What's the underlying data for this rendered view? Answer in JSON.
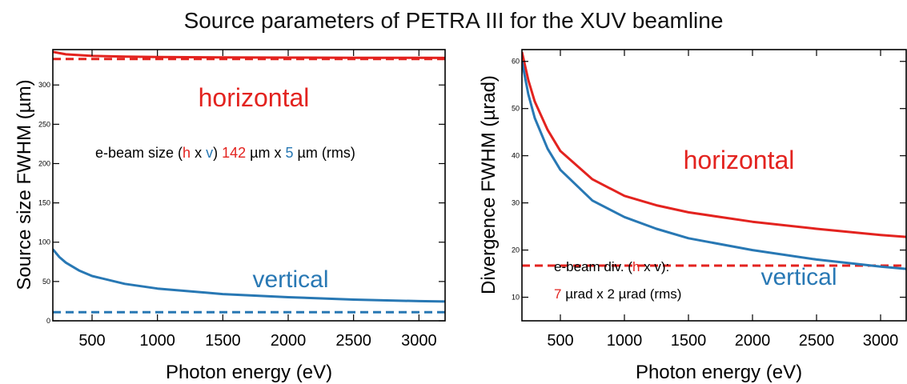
{
  "title": "Source parameters of PETRA III for the XUV beamline",
  "colors": {
    "horizontal": "#e3231f",
    "vertical": "#2878b4",
    "axis": "#000000"
  },
  "chart_data": [
    {
      "type": "line",
      "xlabel": "Photon energy (eV)",
      "ylabel": "Source size FWHM (µm)",
      "xlim": [
        200,
        3200
      ],
      "ylim": [
        0,
        345
      ],
      "xticks": [
        500,
        1000,
        1500,
        2000,
        2500,
        3000
      ],
      "yticks": [
        0,
        50,
        100,
        150,
        200,
        250,
        300
      ],
      "series": [
        {
          "name": "horizontal",
          "style": "solid",
          "color": "#e3231f",
          "x": [
            200,
            300,
            500,
            750,
            1000,
            1500,
            2000,
            2500,
            3000,
            3200
          ],
          "y": [
            342,
            339,
            337,
            336,
            335.5,
            335,
            334.8,
            334.6,
            334.5,
            334.4
          ]
        },
        {
          "name": "horizontal e-beam",
          "style": "dashed",
          "color": "#e3231f",
          "x": [
            200,
            3200
          ],
          "y": [
            333,
            333
          ]
        },
        {
          "name": "vertical",
          "style": "solid",
          "color": "#2878b4",
          "x": [
            200,
            250,
            300,
            400,
            500,
            750,
            1000,
            1500,
            2000,
            2500,
            3000,
            3200
          ],
          "y": [
            91,
            81,
            74,
            64,
            57,
            47,
            41,
            34,
            30,
            27,
            25,
            24.5
          ]
        },
        {
          "name": "vertical e-beam",
          "style": "dashed",
          "color": "#2878b4",
          "x": [
            200,
            3200
          ],
          "y": [
            11,
            11
          ]
        }
      ],
      "annotations": {
        "horizontal": "horizontal",
        "vertical": "vertical",
        "ebeam_prefix": "e-beam size (",
        "h": "h",
        "x_sep": " x ",
        "v": "v",
        "close": ") ",
        "h_value": "142",
        "mid": " µm x ",
        "v_value": "5",
        "suffix": " µm (rms)"
      }
    },
    {
      "type": "line",
      "xlabel": "Photon energy (eV)",
      "ylabel": "Divergence FWHM (µrad)",
      "xlim": [
        200,
        3200
      ],
      "ylim": [
        5,
        62.5
      ],
      "xticks": [
        500,
        1000,
        1500,
        2000,
        2500,
        3000
      ],
      "yticks": [
        10,
        20,
        30,
        40,
        50,
        60
      ],
      "series": [
        {
          "name": "horizontal",
          "style": "solid",
          "color": "#e3231f",
          "x": [
            200,
            250,
            300,
            400,
            500,
            750,
            1000,
            1250,
            1500,
            2000,
            2500,
            3000,
            3200
          ],
          "y": [
            62,
            56,
            51.5,
            45.5,
            41,
            35,
            31.5,
            29.5,
            28,
            26,
            24.5,
            23.2,
            22.8
          ]
        },
        {
          "name": "horizontal e-beam",
          "style": "dashed",
          "color": "#e3231f",
          "x": [
            200,
            3200
          ],
          "y": [
            16.7,
            16.7
          ]
        },
        {
          "name": "vertical",
          "style": "solid",
          "color": "#2878b4",
          "x": [
            200,
            250,
            300,
            400,
            500,
            750,
            1000,
            1250,
            1500,
            2000,
            2500,
            3000,
            3200
          ],
          "y": [
            60,
            53,
            48,
            41.5,
            37,
            30.5,
            27,
            24.5,
            22.5,
            20,
            18,
            16.5,
            16
          ]
        },
        {
          "name": "vertical e-beam",
          "style": "dashed",
          "color": "#2878b4",
          "x": [
            200,
            3200
          ],
          "y": [
            4.8,
            4.8
          ]
        }
      ],
      "annotations": {
        "horizontal": "horizontal",
        "vertical": "vertical",
        "ebeam_line1_prefix": "e-beam div. (",
        "h": "h",
        "x_sep": " x v):",
        "h_value": "7",
        "line2_rest": " µrad x 2 µrad (rms)"
      }
    }
  ]
}
